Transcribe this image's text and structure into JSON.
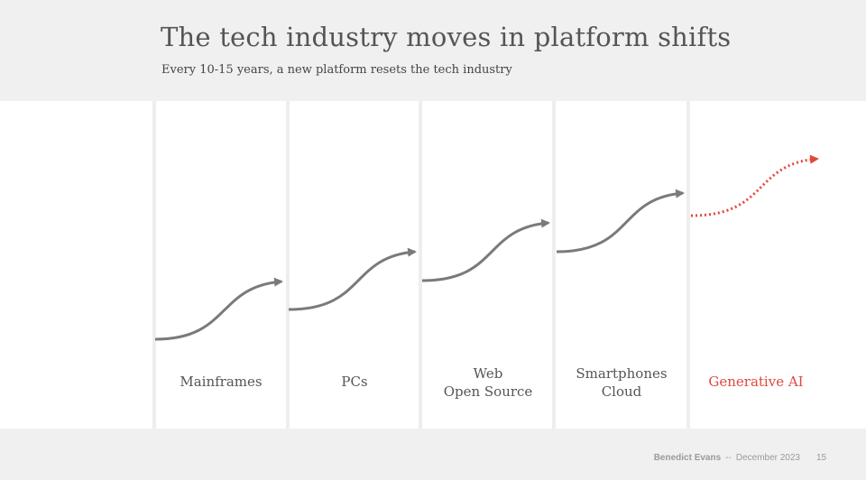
{
  "header": {
    "title": "The tech industry moves in platform shifts",
    "subtitle": "Every 10-15 years, a new platform resets the tech industry"
  },
  "platforms": [
    {
      "lines": [
        "Mainframes"
      ],
      "highlight": false
    },
    {
      "lines": [
        "PCs"
      ],
      "highlight": false
    },
    {
      "lines": [
        "Web",
        "Open Source"
      ],
      "highlight": false
    },
    {
      "lines": [
        "Smartphones",
        "Cloud"
      ],
      "highlight": false
    },
    {
      "lines": [
        "Generative AI"
      ],
      "highlight": true
    }
  ],
  "footer": {
    "author": "Benedict Evans",
    "separator": "--",
    "date": "December 2023",
    "page": "15"
  },
  "colors": {
    "curve": "#7a7a7a",
    "highlight": "#e0483e"
  }
}
